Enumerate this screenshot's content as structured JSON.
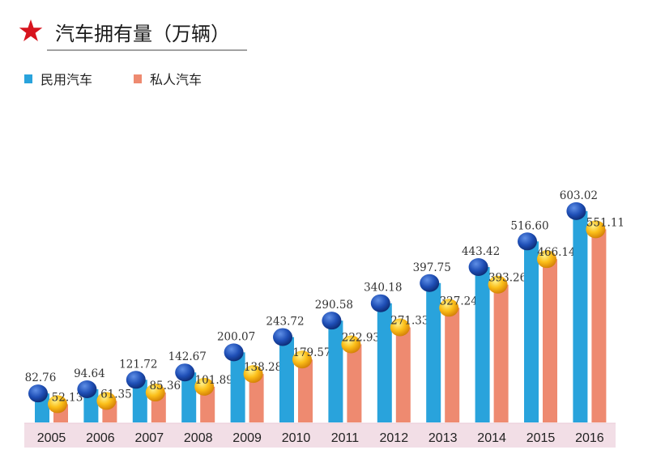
{
  "header": {
    "title": "汽车拥有量（万辆）",
    "star_color": "#d7141e"
  },
  "chart_data": {
    "type": "bar",
    "title": "汽车拥有量（万辆）",
    "xlabel": "",
    "ylabel": "",
    "ylim": [
      0,
      650
    ],
    "grid": false,
    "legend_position": "top-left",
    "categories": [
      "2005",
      "2006",
      "2007",
      "2008",
      "2009",
      "2010",
      "2011",
      "2012",
      "2013",
      "2014",
      "2015",
      "2016"
    ],
    "series": [
      {
        "name": "民用汽车",
        "color": "#29a3dc",
        "values": [
          82.76,
          94.64,
          121.72,
          142.67,
          200.07,
          243.72,
          290.58,
          340.18,
          397.75,
          443.42,
          516.6,
          603.02
        ],
        "labels": [
          "82.76",
          "94.64",
          "121.72",
          "142.67",
          "200.07",
          "243.72",
          "290.58",
          "340.18",
          "397.75",
          "443.42",
          "516.60",
          "603.02"
        ]
      },
      {
        "name": "私人汽车",
        "color": "#ee8a70",
        "values": [
          52.13,
          61.35,
          85.36,
          101.89,
          138.28,
          179.57,
          222.93,
          271.33,
          327.24,
          393.26,
          466.14,
          551.11
        ],
        "labels": [
          "52.13",
          "61.35",
          "85.36",
          "101.89",
          "138.28",
          "179.57",
          "222.93",
          "271.33",
          "327.24",
          "393.26",
          "466.14",
          "551.11"
        ]
      }
    ]
  }
}
